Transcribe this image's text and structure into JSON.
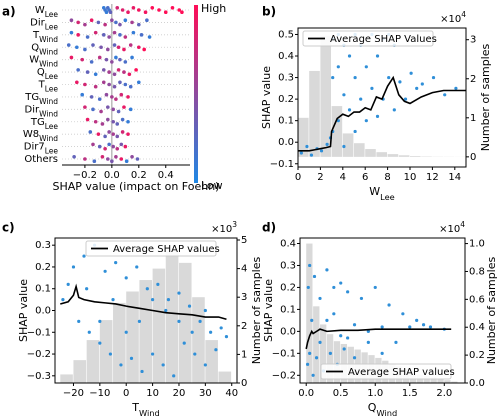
{
  "chart_data": [
    {
      "type": "beeswarm",
      "panel_label": "a)",
      "xlabel": "SHAP value (impact on Foehn)",
      "xlim": [
        -0.37,
        0.58
      ],
      "xticks": [
        {
          "value": -0.2,
          "label": "−0.2"
        },
        {
          "value": 0,
          "label": "0.0"
        },
        0.2,
        0.4
      ],
      "colorbar": {
        "high": "High",
        "low": "Low",
        "colors": [
          "#1e88e5",
          "#ff0d57"
        ]
      },
      "features": [
        {
          "label": [
            "W",
            "Lee"
          ],
          "shap": [
            -0.06,
            -0.05,
            -0.04,
            -0.03,
            -0.02,
            -0.01,
            0.04,
            0.08,
            0.12,
            0.16,
            0.2,
            0.25,
            0.3,
            0.35,
            0.4,
            0.45,
            0.5,
            0.52
          ],
          "feature": [
            0.1,
            0.15,
            0.1,
            0.2,
            0.15,
            0.3,
            0.8,
            0.85,
            0.9,
            0.9,
            0.95,
            0.95,
            1,
            1,
            1,
            1,
            1,
            1
          ]
        },
        {
          "label": [
            "Dir",
            "Lee"
          ],
          "shap": [
            -0.3,
            -0.25,
            -0.2,
            -0.15,
            -0.1,
            -0.05,
            0,
            0.03,
            0.06,
            0.1,
            0.15,
            0.2,
            0.26
          ],
          "feature": [
            0.5,
            0.8,
            0.6,
            0.9,
            0.3,
            0.7,
            0.5,
            0.2,
            0.4,
            0.1,
            0.6,
            0.3,
            0.2
          ]
        },
        {
          "label": [
            "T",
            "Wind"
          ],
          "shap": [
            -0.3,
            -0.25,
            -0.18,
            -0.12,
            -0.06,
            -0.02,
            0.02,
            0.06,
            0.1,
            0.16,
            0.22,
            0.28
          ],
          "feature": [
            0.1,
            0.9,
            0.2,
            0.8,
            0.3,
            0.5,
            0.6,
            0.2,
            0.7,
            0.1,
            0.2,
            0.1
          ]
        },
        {
          "label": [
            "Q",
            "Wind"
          ],
          "shap": [
            -0.32,
            -0.26,
            -0.2,
            -0.14,
            -0.08,
            -0.03,
            0.02,
            0.05,
            0.09,
            0.14,
            0.2,
            0.24
          ],
          "feature": [
            0.2,
            0.1,
            0.2,
            0.3,
            0.4,
            0.5,
            0.3,
            0.8,
            0.9,
            0.7,
            0.9,
            1
          ]
        },
        {
          "label": [
            "W",
            "Wind"
          ],
          "shap": [
            -0.3,
            -0.22,
            -0.15,
            -0.09,
            -0.04,
            0.0,
            0.03,
            0.06,
            0.1,
            0.15
          ],
          "feature": [
            0.9,
            0.8,
            0.2,
            0.7,
            0.4,
            0.5,
            0.1,
            0.3,
            0.2,
            0.1
          ]
        },
        {
          "label": [
            "Q",
            "Lee"
          ],
          "shap": [
            -0.25,
            -0.18,
            -0.12,
            -0.06,
            -0.02,
            0.02,
            0.05,
            0.09,
            0.13,
            0.18
          ],
          "feature": [
            0.2,
            0.3,
            0.1,
            0.4,
            0.6,
            0.5,
            0.8,
            0.7,
            0.9,
            1
          ]
        },
        {
          "label": [
            "T",
            "Lee"
          ],
          "shap": [
            -0.26,
            -0.2,
            -0.12,
            -0.06,
            -0.02,
            0.02,
            0.06,
            0.1,
            0.14,
            0.2
          ],
          "feature": [
            0.9,
            0.8,
            0.7,
            0.6,
            0.5,
            0.4,
            0.3,
            0.2,
            0.2,
            0.1
          ]
        },
        {
          "label": [
            "TG",
            "Wind"
          ],
          "shap": [
            -0.22,
            -0.15,
            -0.09,
            -0.04,
            0.0,
            0.03,
            0.07,
            0.12
          ],
          "feature": [
            0.1,
            0.3,
            0.2,
            0.5,
            0.6,
            0.7,
            0.8,
            0.9
          ]
        },
        {
          "label": [
            "Dir",
            "Wind"
          ],
          "shap": [
            -0.2,
            -0.14,
            -0.08,
            -0.03,
            0.01,
            0.05,
            0.09,
            0.14
          ],
          "feature": [
            0.8,
            0.2,
            0.6,
            0.4,
            0.5,
            0.3,
            0.9,
            0.1
          ]
        },
        {
          "label": [
            "TG",
            "Lee"
          ],
          "shap": [
            -0.18,
            -0.12,
            -0.07,
            -0.03,
            0.01,
            0.04,
            0.08,
            0.12
          ],
          "feature": [
            0.9,
            0.7,
            0.6,
            0.5,
            0.4,
            0.3,
            0.2,
            0.1
          ]
        },
        {
          "label": [
            "W8",
            "Wind"
          ],
          "shap": [
            -0.16,
            -0.1,
            -0.05,
            -0.02,
            0.01,
            0.04,
            0.08,
            0.12
          ],
          "feature": [
            0.2,
            0.9,
            0.3,
            0.5,
            0.6,
            0.4,
            0.8,
            0.9
          ]
        },
        {
          "label": [
            "Dir7",
            "Lee"
          ],
          "shap": [
            -0.14,
            -0.09,
            -0.05,
            -0.02,
            0.01,
            0.04,
            0.07,
            0.1
          ],
          "feature": [
            0.6,
            0.3,
            0.8,
            0.2,
            0.5,
            0.7,
            0.4,
            0.9
          ]
        },
        {
          "label": [
            "Others"
          ],
          "shap": [
            -0.28,
            -0.2,
            -0.13,
            -0.07,
            -0.03,
            0.0,
            0.03,
            0.07,
            0.11,
            0.15,
            0.19
          ],
          "feature": [
            0.3,
            0.7,
            0.2,
            0.8,
            0.5,
            0.4,
            0.6,
            0.9,
            0.1,
            0.5,
            0.3
          ]
        }
      ]
    },
    {
      "type": "scatter_hist",
      "panel_label": "b)",
      "xlabel": [
        "W",
        "Lee"
      ],
      "ylabel": "SHAP value",
      "y2label": "Number of samples",
      "y2_multiplier": [
        "×10",
        "4"
      ],
      "legend": "upper left",
      "xlim": [
        0,
        15
      ],
      "xticks": [
        0,
        2,
        4,
        6,
        8,
        10,
        12,
        14
      ],
      "ylim": [
        -0.115,
        0.53
      ],
      "yticks": [
        {
          "value": -0.1,
          "label": "−0.1"
        },
        {
          "value": 0,
          "label": "0.0"
        },
        0.1,
        0.2,
        0.3,
        0.4,
        0.5
      ],
      "y2lim": [
        -0.26,
        3.3
      ],
      "y2ticks": [
        0,
        1,
        2,
        3
      ],
      "histogram": {
        "color": "#d9d9d9",
        "axis": "y2",
        "bins": [
          0,
          1,
          2,
          3,
          4,
          5,
          6,
          7,
          8,
          9,
          10,
          11,
          12,
          13,
          14,
          15
        ],
        "counts": [
          1.0,
          2.2,
          3.1,
          1.3,
          0.6,
          0.35,
          0.2,
          0.12,
          0.07,
          0.04,
          0.02,
          0.01,
          0.005,
          0.003,
          0.002
        ]
      },
      "points": {
        "color": "#2f8fd8",
        "x": [
          0.3,
          0.8,
          1.2,
          1.7,
          2.1,
          2.6,
          2.9,
          3.1,
          3.1,
          3.1,
          3.6,
          3.6,
          3.6,
          4.1,
          4.1,
          4.1,
          4.6,
          4.6,
          5.1,
          5.1,
          5.1,
          5.6,
          5.6,
          6.1,
          6.1,
          6.6,
          6.6,
          7.1,
          7.1,
          7.6,
          7.6,
          8.1,
          8.1,
          8.6,
          8.6,
          9.1,
          9.6,
          10.1,
          10.6,
          11.1,
          12.1,
          13.1,
          14.1
        ],
        "values": [
          -0.05,
          -0.02,
          -0.06,
          -0.03,
          -0.04,
          -0.01,
          0.02,
          0.05,
          0.3,
          0.48,
          0.1,
          0.35,
          0.5,
          -0.02,
          0.22,
          0.45,
          0.15,
          0.4,
          0.05,
          0.3,
          0.5,
          0.2,
          0.45,
          0.1,
          0.35,
          0.25,
          0.5,
          0.12,
          0.4,
          0.2,
          0.48,
          0.3,
          0.5,
          0.15,
          0.45,
          0.28,
          0.2,
          0.32,
          0.25,
          0.27,
          0.3,
          0.22,
          0.25
        ]
      },
      "series": [
        {
          "name": "Average SHAP Values",
          "color": "#000000",
          "x": [
            0,
            0.5,
            1,
            1.5,
            2,
            2.5,
            2.9,
            3,
            3.5,
            4,
            4.5,
            5,
            5.5,
            6,
            6.5,
            7,
            7.5,
            8,
            8.5,
            9,
            9.5,
            10,
            11,
            12,
            13,
            14,
            15
          ],
          "values": [
            -0.04,
            -0.04,
            -0.04,
            -0.035,
            -0.03,
            -0.025,
            -0.02,
            0.05,
            0.11,
            0.13,
            0.12,
            0.14,
            0.14,
            0.16,
            0.15,
            0.21,
            0.2,
            0.26,
            0.3,
            0.22,
            0.19,
            0.18,
            0.21,
            0.23,
            0.24,
            0.24,
            0.24
          ]
        }
      ]
    },
    {
      "type": "scatter_hist",
      "panel_label": "c)",
      "xlabel": [
        "T",
        "Wind"
      ],
      "ylabel": "SHAP value",
      "y2label": "Number of samples",
      "y2_multiplier": [
        "×10",
        "3"
      ],
      "legend": "upper center",
      "xlim": [
        -27,
        42
      ],
      "xticks": [
        {
          "value": -20,
          "label": "−20"
        },
        {
          "value": -10,
          "label": "−10"
        },
        0,
        10,
        20,
        30,
        40
      ],
      "ylim": [
        -0.333,
        0.333
      ],
      "yticks": [
        {
          "value": -0.3,
          "label": "−0.3"
        },
        {
          "value": -0.2,
          "label": "−0.2"
        },
        {
          "value": -0.1,
          "label": "−0.1"
        },
        {
          "value": 0,
          "label": "0.0"
        },
        0.1,
        0.2,
        0.3
      ],
      "y2lim": [
        0,
        5.07
      ],
      "y2ticks": [
        0,
        1,
        2,
        3,
        4,
        5
      ],
      "histogram": {
        "color": "#d9d9d9",
        "axis": "y2",
        "bins": [
          -25,
          -20,
          -15,
          -10,
          -5,
          0,
          5,
          10,
          15,
          20,
          25,
          30,
          35,
          40
        ],
        "counts": [
          0.3,
          0.8,
          1.5,
          2.2,
          2.8,
          3.2,
          3.6,
          4.0,
          4.6,
          4.2,
          3.0,
          1.5,
          0.4
        ]
      },
      "points": {
        "color": "#2f8fd8",
        "x": [
          -24,
          -22,
          -20,
          -18,
          -16,
          -14,
          -12,
          -10,
          -8,
          -6,
          -4,
          -2,
          0,
          2,
          4,
          6,
          8,
          10,
          12,
          14,
          16,
          18,
          20,
          22,
          24,
          26,
          28,
          30,
          32,
          34,
          36,
          38,
          -15,
          -5,
          5,
          15,
          25,
          -10,
          0,
          10,
          20,
          30
        ],
        "values": [
          0.05,
          0.12,
          0.2,
          -0.05,
          0.25,
          -0.1,
          0.3,
          -0.15,
          0.18,
          -0.2,
          0.22,
          -0.25,
          0.15,
          -0.22,
          0.2,
          -0.28,
          0.1,
          -0.2,
          0.12,
          -0.25,
          0.05,
          -0.3,
          0.08,
          -0.15,
          0.02,
          -0.2,
          -0.05,
          -0.25,
          -0.1,
          -0.18,
          -0.08,
          -0.12,
          0.1,
          0.05,
          -0.05,
          0.0,
          -0.1,
          -0.05,
          -0.1,
          0.05,
          -0.05,
          0.0
        ]
      },
      "series": [
        {
          "name": "Average SHAP values",
          "color": "#000000",
          "x": [
            -25,
            -22,
            -20,
            -19,
            -18,
            -16,
            -12,
            -8,
            -4,
            0,
            5,
            10,
            15,
            20,
            25,
            30,
            35,
            38
          ],
          "values": [
            0.03,
            0.04,
            0.07,
            0.11,
            0.06,
            0.05,
            0.04,
            0.035,
            0.03,
            0.02,
            0.01,
            0.0,
            -0.01,
            -0.015,
            -0.02,
            -0.03,
            -0.03,
            -0.04
          ]
        }
      ]
    },
    {
      "type": "scatter_hist",
      "panel_label": "d)",
      "xlabel": [
        "Q",
        "Wind"
      ],
      "ylabel": "SHAP value",
      "y2label": "Number of samples",
      "y2_multiplier": [
        "×10",
        "4"
      ],
      "legend": "lower right",
      "xlim": [
        -0.09,
        2.3
      ],
      "xticks": [
        {
          "value": 0,
          "label": "0.0"
        },
        0.5,
        {
          "value": 1,
          "label": "1.0"
        },
        1.5,
        {
          "value": 2,
          "label": "2.0"
        }
      ],
      "ylim": [
        -0.235,
        0.425
      ],
      "yticks": [
        {
          "value": -0.2,
          "label": "−0.2"
        },
        {
          "value": -0.1,
          "label": "−0.1"
        },
        {
          "value": 0,
          "label": "0.0"
        },
        0.1,
        0.2,
        0.3,
        0.4
      ],
      "y2lim": [
        0,
        1.04
      ],
      "y2ticks": [
        {
          "value": 0,
          "label": "0.0"
        },
        0.2,
        0.4,
        0.6,
        0.8,
        {
          "value": 1,
          "label": "1.0"
        }
      ],
      "histogram": {
        "color": "#d9d9d9",
        "axis": "y2",
        "bins": [
          0,
          0.1,
          0.2,
          0.3,
          0.4,
          0.5,
          0.6,
          0.7,
          0.8,
          0.9,
          1.0,
          1.1,
          1.2,
          1.3,
          1.4,
          1.5,
          1.6,
          1.7,
          1.8,
          1.9,
          2.0,
          2.1,
          2.2
        ],
        "counts": [
          1.0,
          0.55,
          0.42,
          0.35,
          0.3,
          0.28,
          0.26,
          0.24,
          0.22,
          0.2,
          0.18,
          0.16,
          0.14,
          0.12,
          0.1,
          0.08,
          0.06,
          0.05,
          0.04,
          0.03,
          0.02,
          0.01
        ]
      },
      "points": {
        "color": "#2f8fd8",
        "x": [
          0.02,
          0.03,
          0.05,
          0.05,
          0.08,
          0.1,
          0.12,
          0.15,
          0.2,
          0.25,
          0.3,
          0.35,
          0.4,
          0.45,
          0.5,
          0.55,
          0.6,
          0.7,
          0.8,
          0.9,
          1.0,
          1.1,
          1.2,
          1.3,
          1.4,
          1.5,
          1.6,
          1.7,
          1.8,
          2.0,
          0.3,
          0.5,
          0.7,
          0.9,
          1.1,
          0.2,
          0.4,
          0.6
        ],
        "values": [
          -0.15,
          0.2,
          -0.1,
          0.3,
          0.05,
          -0.2,
          0.25,
          -0.12,
          0.15,
          -0.18,
          0.28,
          -0.1,
          0.2,
          -0.15,
          0.22,
          -0.08,
          0.18,
          -0.12,
          0.15,
          -0.05,
          0.2,
          -0.1,
          0.12,
          -0.05,
          0.08,
          0.02,
          0.05,
          0.03,
          0.02,
          0.01,
          0.05,
          -0.02,
          0.03,
          0.0,
          0.02,
          -0.05,
          0.08,
          -0.03
        ]
      },
      "series": [
        {
          "name": "Average SHAP values",
          "color": "#000000",
          "x": [
            0.0,
            0.02,
            0.05,
            0.08,
            0.1,
            0.15,
            0.2,
            0.3,
            0.5,
            0.75,
            1,
            1.25,
            1.5,
            1.75,
            2.0,
            2.1
          ],
          "values": [
            -0.08,
            -0.05,
            -0.02,
            0.0,
            -0.01,
            0.0,
            0.01,
            0.0,
            0.005,
            0.005,
            0.01,
            0.01,
            0.01,
            0.01,
            0.01,
            0.01
          ]
        }
      ]
    }
  ]
}
